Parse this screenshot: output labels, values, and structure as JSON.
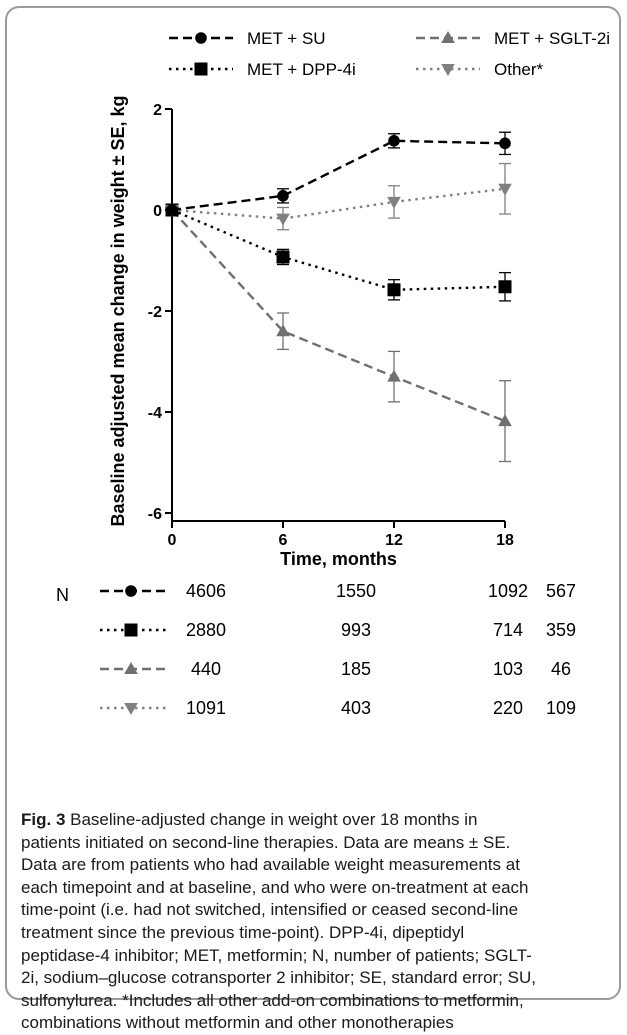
{
  "chart_data": {
    "type": "line",
    "xlabel": "Time, months",
    "ylabel": "Baseline adjusted mean change in weight ± SE, kg",
    "x": [
      0,
      6,
      12,
      18
    ],
    "xticks": [
      "0",
      "6",
      "12",
      "18"
    ],
    "ylim": [
      -6,
      2
    ],
    "yticks": [
      "-6",
      "-4",
      "-2",
      "0",
      "2"
    ],
    "grid": false,
    "legend_position": "top",
    "series": [
      {
        "name": "MET + SU",
        "values": [
          0,
          0.28,
          1.37,
          1.32
        ],
        "se": [
          0,
          0.14,
          0.14,
          0.22
        ],
        "marker": "circle",
        "dash": "dashed",
        "color": "#000000"
      },
      {
        "name": "MET + DPP-4i",
        "values": [
          0,
          -0.93,
          -1.58,
          -1.52
        ],
        "se": [
          0,
          0.15,
          0.2,
          0.28
        ],
        "marker": "square",
        "dash": "dotted",
        "color": "#000000"
      },
      {
        "name": "MET + SGLT-2i",
        "values": [
          0,
          -2.4,
          -3.3,
          -4.18
        ],
        "se": [
          0,
          0.36,
          0.5,
          0.8
        ],
        "marker": "triangle-up",
        "dash": "dashed",
        "color": "#707070"
      },
      {
        "name": "Other*",
        "values": [
          0,
          -0.17,
          0.16,
          0.42
        ],
        "se": [
          0,
          0.22,
          0.32,
          0.5
        ],
        "marker": "triangle-down",
        "dash": "dotted",
        "color": "#808080"
      }
    ]
  },
  "table": {
    "label": "N",
    "rows": [
      {
        "series": "MET + SU",
        "values": [
          "4606",
          "1550",
          "1092",
          "567"
        ]
      },
      {
        "series": "MET + DPP-4i",
        "values": [
          "2880",
          "993",
          "714",
          "359"
        ]
      },
      {
        "series": "MET + SGLT-2i",
        "values": [
          "440",
          "185",
          "103",
          "46"
        ]
      },
      {
        "series": "Other*",
        "values": [
          "1091",
          "403",
          "220",
          "109"
        ]
      }
    ]
  },
  "caption": {
    "label": "Fig. 3",
    "lines": [
      " Baseline-adjusted change in weight over 18 months in",
      "patients initiated on second-line therapies. Data are means ± SE.",
      "Data are from patients who had available weight measurements at",
      "each timepoint and at baseline, and who were on-treatment at each",
      "time-point (i.e. had not switched, intensified or ceased second-line",
      "treatment since the previous time-point). DPP-4i, dipeptidyl",
      "peptidase-4 inhibitor; MET, metformin; N, number of patients; SGLT-",
      "2i, sodium–glucose cotransporter 2 inhibitor; SE, standard error; SU,",
      "sulfonylurea. *Includes all other add-on combinations to metformin,",
      "combinations without metformin and other monotherapies"
    ]
  }
}
